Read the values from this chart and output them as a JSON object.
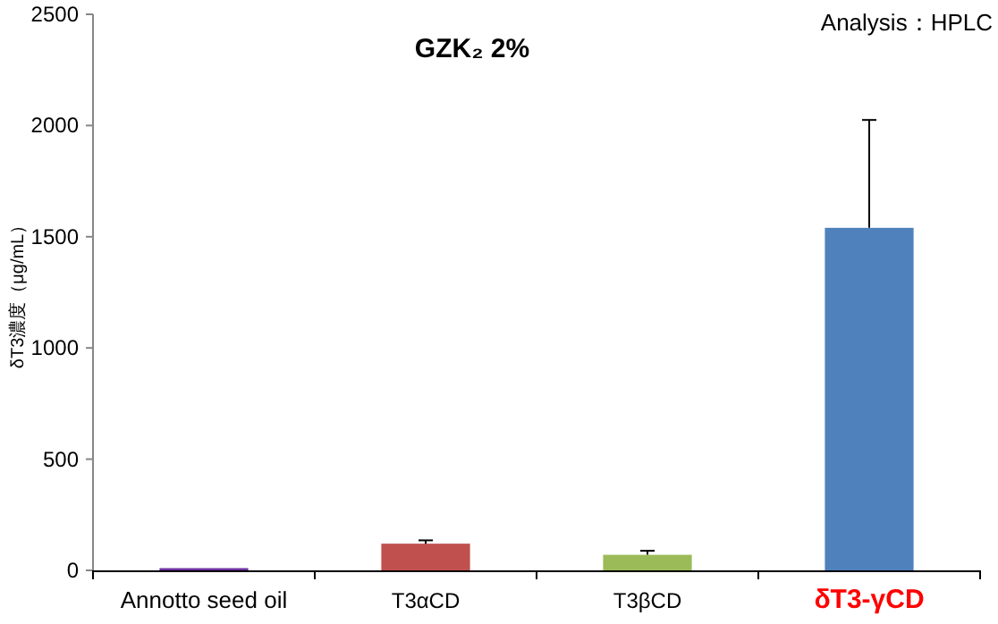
{
  "chart_data": {
    "type": "bar",
    "title": "GZK₂ 2%",
    "ylabel": "δT3濃度（μg/mL）",
    "annotations": [
      "Analysis：HPLC"
    ],
    "categories": [
      "Annotto seed oil",
      "T3αCD",
      "T3βCD",
      "δT3-γCD"
    ],
    "values": [
      10,
      120,
      70,
      1540
    ],
    "colors": [
      "#7030a0",
      "#c0504d",
      "#9bbb59",
      "#4f81bd"
    ],
    "errors": [
      null,
      [
        120,
        135
      ],
      [
        70,
        88
      ],
      [
        1540,
        2025
      ]
    ],
    "ylim": [
      0,
      2500
    ],
    "yticks": [
      0,
      500,
      1000,
      1500,
      2000,
      2500
    ],
    "grid": false
  }
}
